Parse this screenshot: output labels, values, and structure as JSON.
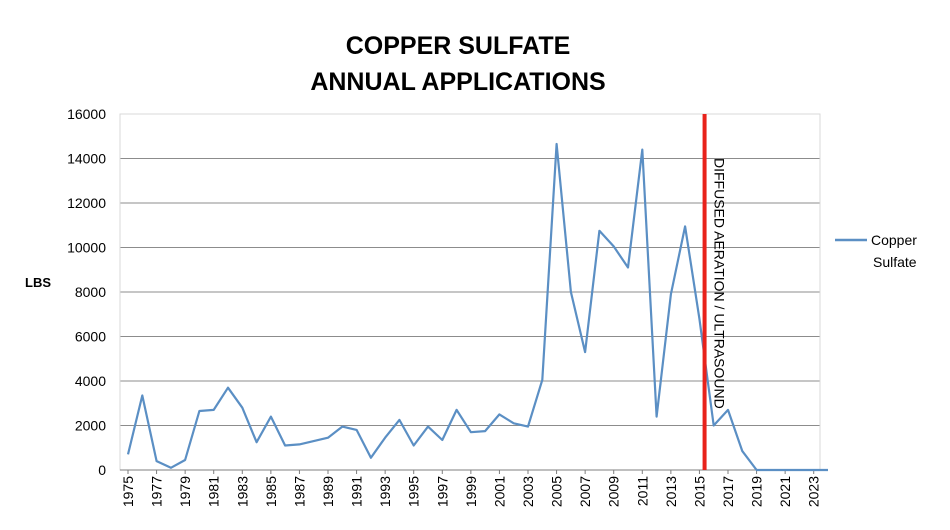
{
  "chart_data": {
    "type": "line",
    "title": "COPPER SULFATE\nANNUAL APPLICATIONS",
    "title_lines": [
      "COPPER SULFATE",
      "ANNUAL APPLICATIONS"
    ],
    "xlabel": "",
    "ylabel": "LBS",
    "ylim": [
      0,
      16000
    ],
    "yticks": [
      0,
      2000,
      4000,
      6000,
      8000,
      10000,
      12000,
      14000,
      16000
    ],
    "xlim": [
      1975,
      2024
    ],
    "xticks": [
      1975,
      1977,
      1979,
      1981,
      1983,
      1985,
      1987,
      1989,
      1991,
      1993,
      1995,
      1997,
      1999,
      2001,
      2003,
      2005,
      2007,
      2009,
      2011,
      2013,
      2015,
      2017,
      2019,
      2021,
      2023
    ],
    "grid": true,
    "legend_position": "right",
    "x": [
      1975,
      1976,
      1977,
      1978,
      1979,
      1980,
      1981,
      1982,
      1983,
      1984,
      1985,
      1986,
      1987,
      1988,
      1989,
      1990,
      1991,
      1992,
      1993,
      1994,
      1995,
      1996,
      1997,
      1998,
      1999,
      2000,
      2001,
      2002,
      2003,
      2004,
      2005,
      2006,
      2007,
      2008,
      2009,
      2010,
      2011,
      2012,
      2013,
      2014,
      2015,
      2016,
      2017,
      2018,
      2019,
      2020,
      2021,
      2022,
      2023,
      2024
    ],
    "series": [
      {
        "name": "Copper Sulfate",
        "color": "#5b8fc4",
        "values": [
          700,
          3350,
          400,
          100,
          450,
          2650,
          2700,
          3700,
          2800,
          1250,
          2400,
          1100,
          1150,
          1300,
          1450,
          1950,
          1800,
          550,
          1450,
          2250,
          1100,
          1950,
          1350,
          2700,
          1700,
          1750,
          2500,
          2100,
          1950,
          4050,
          14650,
          8000,
          5300,
          10750,
          10050,
          9100,
          14400,
          2400,
          7900,
          10950,
          6800,
          2000,
          2700,
          850,
          0,
          0,
          0,
          0,
          0,
          0
        ]
      }
    ],
    "annotation": {
      "x": 2015.5,
      "text": "DIFFUSED AERATION / ULTRASOUND",
      "color": "#e8221b"
    }
  }
}
